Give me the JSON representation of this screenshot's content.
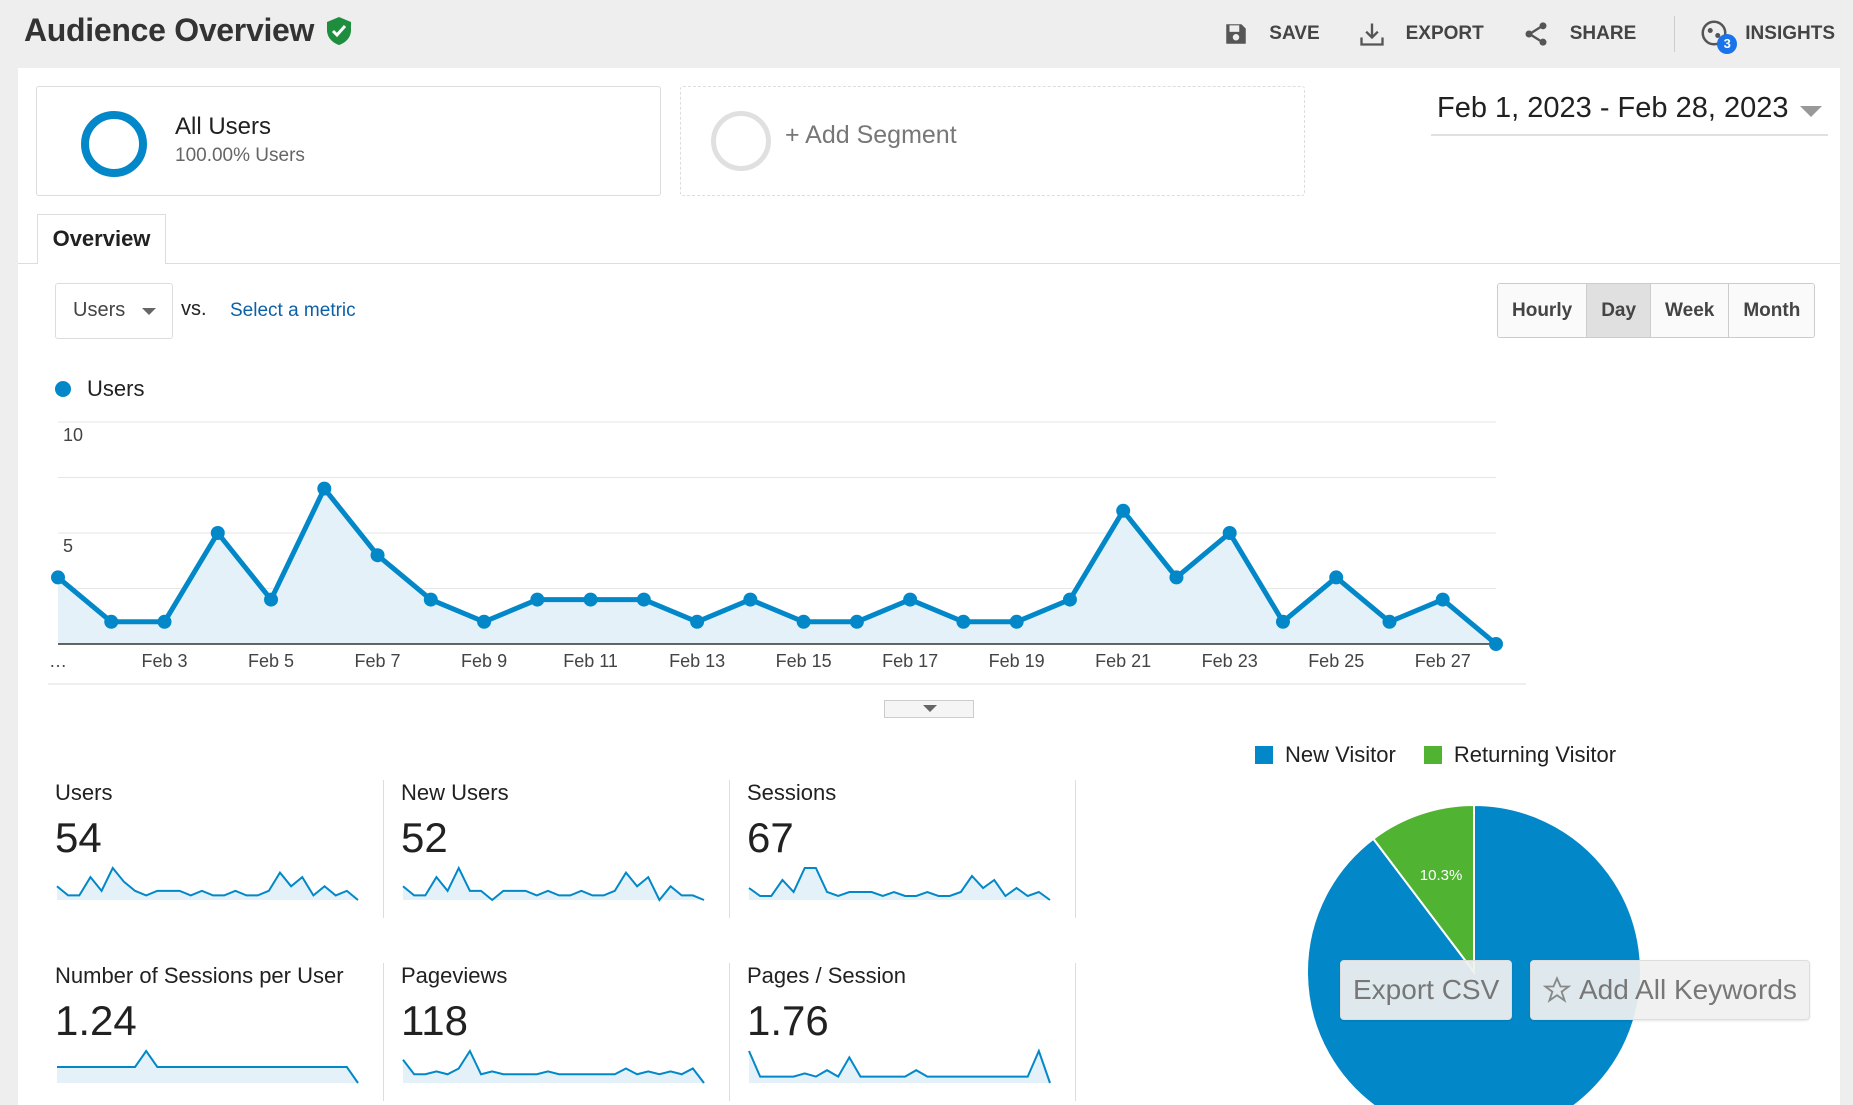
{
  "header": {
    "title": "Audience Overview",
    "actions": {
      "save": "SAVE",
      "export": "EXPORT",
      "share": "SHARE",
      "insights": "INSIGHTS",
      "insights_badge": "3"
    }
  },
  "segments": {
    "all_users": {
      "name": "All Users",
      "sub": "100.00% Users"
    },
    "add_segment": "+ Add Segment"
  },
  "date_range": "Feb 1, 2023 - Feb 28, 2023",
  "tabs": {
    "overview": "Overview"
  },
  "metric_selector": {
    "value": "Users",
    "vs": "vs.",
    "select_metric": "Select a metric"
  },
  "period_buttons": {
    "hourly": "Hourly",
    "day": "Day",
    "week": "Week",
    "month": "Month",
    "selected": "Day"
  },
  "chart_legend": "Users",
  "accent_color": "#0288c8",
  "chart_data": [
    {
      "type": "area",
      "series": [
        {
          "name": "Users",
          "values": [
            3,
            1,
            1,
            5,
            2,
            7,
            4,
            2,
            1,
            2,
            2,
            2,
            1,
            2,
            1,
            1,
            2,
            1,
            1,
            2,
            6,
            3,
            5,
            1,
            3,
            1,
            2,
            0
          ]
        }
      ],
      "x_labels": [
        "…",
        "Feb 3",
        "Feb 5",
        "Feb 7",
        "Feb 9",
        "Feb 11",
        "Feb 13",
        "Feb 15",
        "Feb 17",
        "Feb 19",
        "Feb 21",
        "Feb 23",
        "Feb 25",
        "Feb 27"
      ],
      "x_label_days": [
        1,
        3,
        5,
        7,
        9,
        11,
        13,
        15,
        17,
        19,
        21,
        23,
        25,
        27
      ],
      "y_ticks": [
        "10",
        "5"
      ],
      "ylim": [
        0,
        10
      ],
      "grid": true
    },
    {
      "type": "pie",
      "slices": [
        {
          "label": "New Visitor",
          "value": 89.7,
          "display": "89.7%",
          "color": "#0288c8"
        },
        {
          "label": "Returning Visitor",
          "value": 10.3,
          "display": "10.3%",
          "color": "#50b432"
        }
      ]
    }
  ],
  "stats": [
    {
      "label": "Users",
      "value": "54",
      "spark": [
        3,
        1,
        1,
        5,
        2,
        7,
        4,
        2,
        1,
        2,
        2,
        2,
        1,
        2,
        1,
        1,
        2,
        1,
        1,
        2,
        6,
        3,
        5,
        1,
        3,
        1,
        2,
        0
      ]
    },
    {
      "label": "New Users",
      "value": "52",
      "spark": [
        3,
        1,
        1,
        5,
        2,
        7,
        2,
        2,
        0,
        2,
        2,
        2,
        1,
        2,
        1,
        1,
        2,
        1,
        1,
        2,
        6,
        3,
        5,
        0,
        3,
        1,
        1,
        0
      ]
    },
    {
      "label": "Sessions",
      "value": "67",
      "spark": [
        3,
        1,
        1,
        5,
        2,
        8,
        8,
        2,
        1,
        2,
        2,
        2,
        1,
        2,
        1,
        1,
        2,
        1,
        1,
        2,
        6,
        3,
        5,
        1,
        3,
        1,
        2,
        0
      ]
    },
    {
      "label": "Number of Sessions per User",
      "value": "1.24",
      "spark": [
        1,
        1,
        1,
        1,
        1,
        1,
        1,
        1,
        3,
        1,
        1,
        1,
        1,
        1,
        1,
        1,
        1,
        1,
        1,
        1,
        1,
        1,
        1,
        1,
        1,
        1,
        1,
        -1
      ]
    },
    {
      "label": "Pageviews",
      "value": "118",
      "spark": [
        6,
        1,
        1,
        2,
        1,
        3,
        9,
        1,
        2,
        1,
        1,
        1,
        1,
        2,
        1,
        1,
        1,
        1,
        1,
        1,
        3,
        1,
        2,
        1,
        2,
        1,
        3,
        -2
      ]
    },
    {
      "label": "Pages / Session",
      "value": "1.76",
      "spark": [
        9,
        1,
        1,
        1,
        1,
        2,
        1,
        3,
        1,
        7,
        1,
        1,
        1,
        1,
        1,
        3,
        1,
        1,
        1,
        1,
        1,
        1,
        1,
        1,
        1,
        1,
        9,
        -1
      ]
    }
  ],
  "overlay_buttons": {
    "export_csv": "Export CSV",
    "add_keywords": "Add All Keywords"
  }
}
